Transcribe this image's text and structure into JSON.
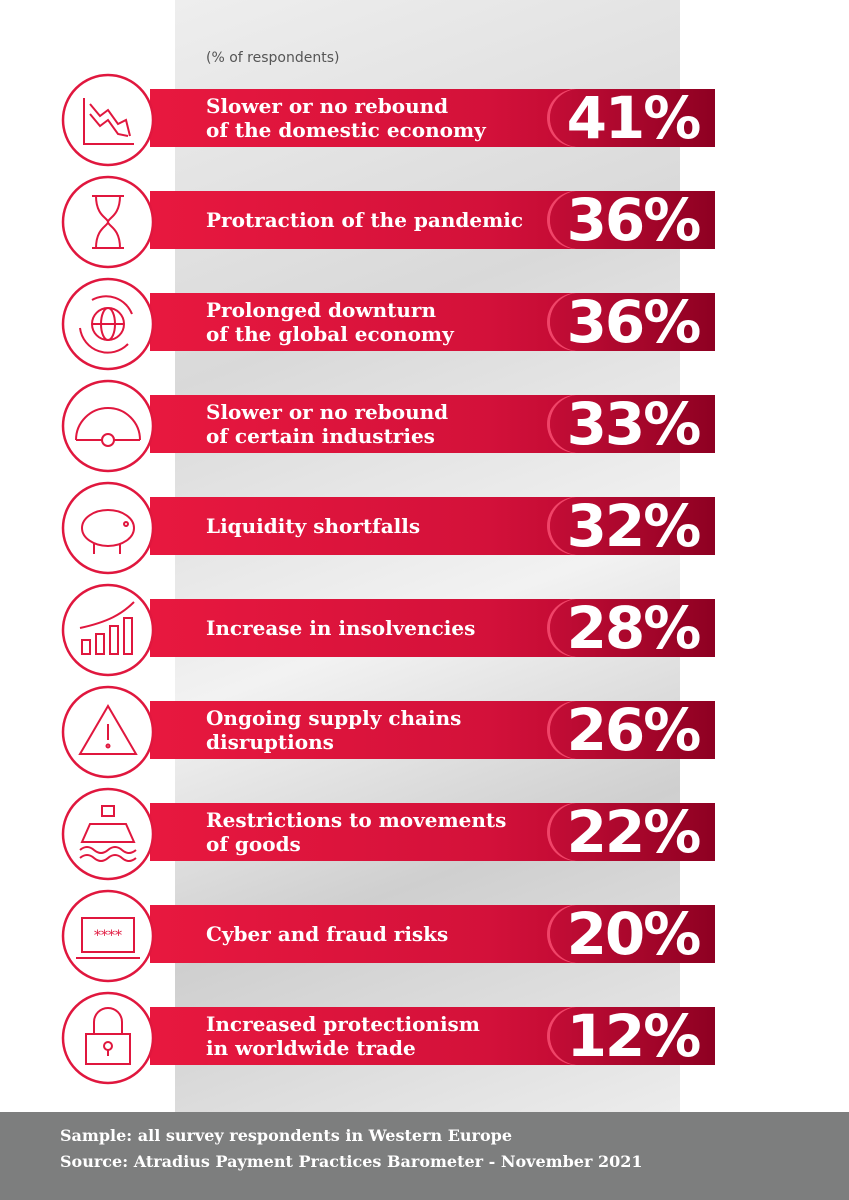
{
  "subtitle": "(% of respondents)",
  "items": [
    {
      "lines": [
        "Slower or no rebound",
        "of the domestic economy"
      ],
      "value": "41%"
    },
    {
      "lines": [
        "Protraction of the pandemic"
      ],
      "value": "36%"
    },
    {
      "lines": [
        "Prolonged downturn",
        "of the global economy"
      ],
      "value": "36%"
    },
    {
      "lines": [
        "Slower or no rebound",
        "of certain industries"
      ],
      "value": "33%"
    },
    {
      "lines": [
        "Liquidity shortfalls"
      ],
      "value": "32%"
    },
    {
      "lines": [
        "Increase in insolvencies"
      ],
      "value": "28%"
    },
    {
      "lines": [
        "Ongoing supply chains",
        "disruptions"
      ],
      "value": "26%"
    },
    {
      "lines": [
        "Restrictions to movements",
        "of goods"
      ],
      "value": "22%"
    },
    {
      "lines": [
        "Cyber and fraud risks"
      ],
      "value": "20%"
    },
    {
      "lines": [
        "Increased protectionism",
        "in worldwide trade"
      ],
      "value": "12%"
    }
  ],
  "footer": {
    "sample": "Sample: all survey respondents in Western Europe",
    "source": "Source: Atradius Payment Practices Barometer - November 2021"
  }
}
